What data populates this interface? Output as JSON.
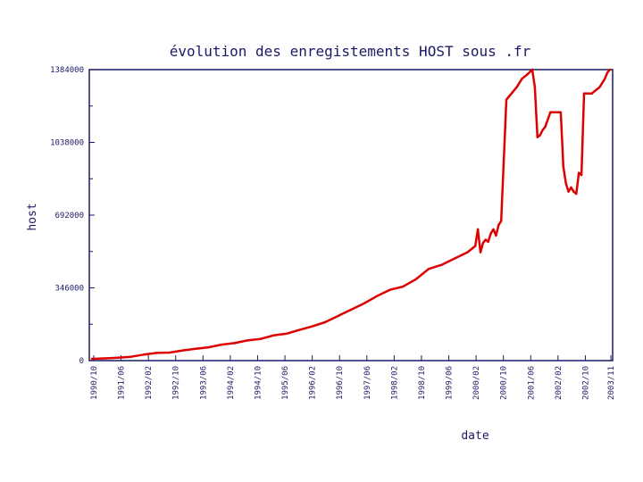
{
  "chart_data": {
    "type": "line",
    "title": "évolution des enregistements HOST sous .fr",
    "xlabel": "date",
    "ylabel": "host",
    "ylim": [
      0,
      1384000
    ],
    "yticks": [
      0,
      346000,
      692000,
      1038000,
      1384000
    ],
    "ytick_labels": [
      "0",
      "346000",
      "692000",
      "1038000",
      "1384000"
    ],
    "xtick_labels": [
      "1990/10",
      "1991/06",
      "1992/02",
      "1992/10",
      "1993/06",
      "1994/02",
      "1994/10",
      "1995/06",
      "1996/02",
      "1996/10",
      "1997/06",
      "1998/02",
      "1998/10",
      "1999/06",
      "2000/02",
      "2000/10",
      "2001/06",
      "2002/02",
      "2002/10",
      "2003/11"
    ],
    "grid": false,
    "series": [
      {
        "color": "#dd0000",
        "x": [
          0,
          5,
          10,
          15,
          20,
          25,
          30,
          35,
          40,
          45,
          50,
          55,
          60,
          65,
          70,
          75,
          80,
          85,
          90,
          95,
          100,
          105,
          110,
          115,
          120,
          125,
          130,
          135,
          140,
          145,
          148,
          149,
          150,
          151,
          152,
          153,
          154,
          155,
          156,
          157,
          158,
          160,
          162,
          164,
          166,
          168,
          170,
          171,
          172,
          173,
          174,
          175,
          177,
          178,
          179,
          180,
          181,
          182,
          183,
          184,
          185,
          186,
          187,
          188,
          189,
          190,
          191,
          192,
          193,
          194,
          195,
          196,
          197,
          198,
          199,
          200
        ],
        "y": [
          0,
          2000,
          5000,
          10000,
          20000,
          28000,
          30000,
          40000,
          48000,
          55000,
          68000,
          75000,
          88000,
          95000,
          112000,
          120000,
          138000,
          155000,
          175000,
          205000,
          235000,
          265000,
          300000,
          330000,
          345000,
          380000,
          430000,
          450000,
          480000,
          510000,
          540000,
          620000,
          510000,
          555000,
          570000,
          560000,
          600000,
          620000,
          590000,
          640000,
          660000,
          1240000,
          1270000,
          1300000,
          1340000,
          1360000,
          1384000,
          1300000,
          1060000,
          1070000,
          1095000,
          1110000,
          1180000,
          1180000,
          1180000,
          1180000,
          1180000,
          920000,
          840000,
          800000,
          820000,
          800000,
          790000,
          890000,
          880000,
          1270000,
          1270000,
          1270000,
          1270000,
          1280000,
          1290000,
          1300000,
          1320000,
          1340000,
          1370000,
          1384000
        ]
      }
    ]
  }
}
